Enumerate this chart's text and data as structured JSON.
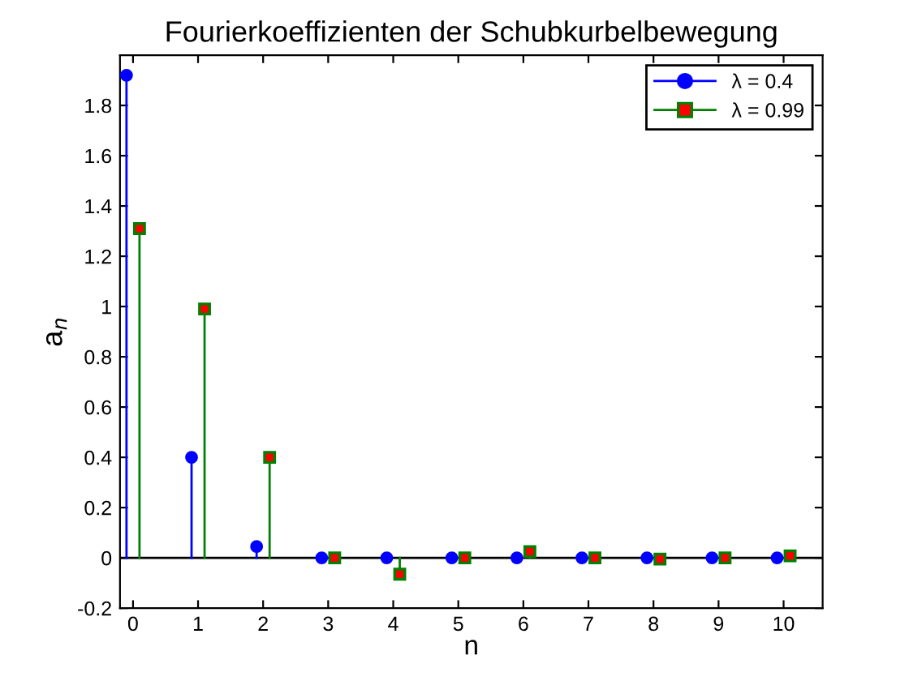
{
  "chart_data": {
    "type": "lollipop",
    "title": "Fourierkoeffizienten der Schubkurbelbewegung",
    "xlabel": "n",
    "ylabel": "a$_{n}$",
    "series": [
      {
        "name": "λ = 0.4",
        "color": "#0000ff",
        "marker": "circle",
        "x": [
          -0.1,
          0.9,
          1.9,
          2.9,
          3.9,
          4.9,
          5.9,
          6.9,
          7.9,
          8.9,
          9.9
        ],
        "values": [
          1.92,
          0.4,
          0.045,
          0,
          0,
          0,
          0,
          0,
          0,
          0,
          0
        ]
      },
      {
        "name": "λ = 0.99",
        "color": "#008000",
        "marker": "square",
        "x": [
          0.1,
          1.1,
          2.1,
          3.1,
          4.1,
          5.1,
          6.1,
          7.1,
          8.1,
          9.1,
          10.1
        ],
        "values": [
          1.31,
          0.99,
          0.4,
          0,
          -0.065,
          0,
          0.025,
          0,
          -0.005,
          0,
          0.008
        ]
      }
    ],
    "xlim": [
      -0.2,
      10.6
    ],
    "xticks": [
      0,
      1,
      2,
      3,
      4,
      5,
      6,
      7,
      8,
      9,
      10
    ],
    "ylim": [
      -0.2,
      2
    ],
    "yticks": [
      -0.2,
      0,
      0.2,
      0.4,
      0.6,
      0.8,
      1,
      1.2,
      1.4,
      1.6,
      1.8
    ],
    "ref_lines": [
      {
        "axis": "y",
        "value": 0,
        "color": "#000000"
      }
    ],
    "grid": false,
    "legend": "top right"
  }
}
